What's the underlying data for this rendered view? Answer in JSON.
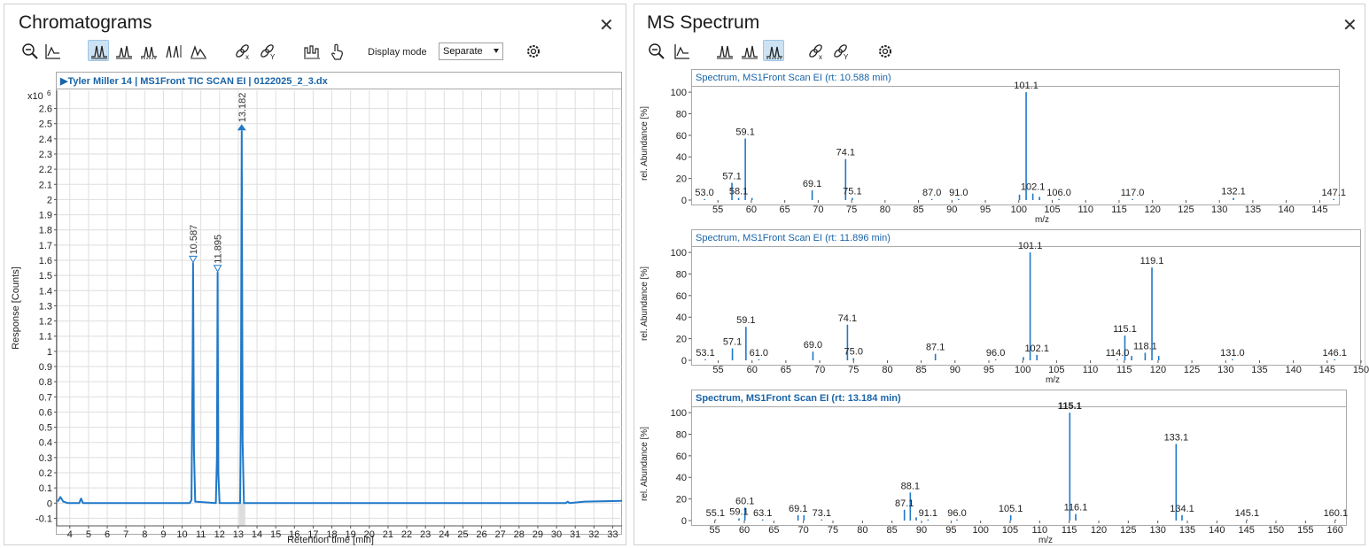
{
  "left": {
    "title": "Chromatograms",
    "display_mode_label": "Display mode",
    "display_mode_value": "Separate",
    "chart_header": "Tyler Miller 14 | MS1Front TIC SCAN EI | 0122025_2_3.dx"
  },
  "right": {
    "title": "MS Spectrum"
  },
  "chart_data": [
    {
      "type": "line",
      "ylabel": "Response [Counts]",
      "xlabel": "Retention time [min]",
      "y_multiplier": "x10 6",
      "xlim": [
        3.3,
        33.5
      ],
      "ylim": [
        -0.15,
        2.72
      ],
      "xticks": [
        4,
        5,
        6,
        7,
        8,
        9,
        10,
        11,
        12,
        13,
        14,
        15,
        16,
        17,
        18,
        19,
        20,
        21,
        22,
        23,
        24,
        25,
        26,
        27,
        28,
        29,
        30,
        31,
        32,
        33
      ],
      "yticks": [
        -0.1,
        0,
        0.1,
        0.2,
        0.3,
        0.4,
        0.5,
        0.6,
        0.7,
        0.8,
        0.9,
        1,
        1.1,
        1.2,
        1.3,
        1.4,
        1.5,
        1.6,
        1.7,
        1.8,
        1.9,
        2,
        2.1,
        2.2,
        2.3,
        2.4,
        2.5,
        2.6
      ],
      "ytick_labels": [
        "-0.1",
        "0",
        "0.1",
        "0.2",
        "0.3",
        "0.4",
        "0.5",
        "0.6",
        "0.7",
        "0.8",
        "0.9",
        "1",
        "1.1",
        "1.2",
        "1.3",
        "1.4",
        "1.5",
        "1.6",
        "1.7",
        "1.8",
        "1.9",
        "2",
        "2.1",
        "2.2",
        "2.3",
        "2.4",
        "2.5",
        "2.6"
      ],
      "grid": true,
      "peaks": [
        {
          "label": "10.587",
          "rt": 10.587,
          "height": 1.58
        },
        {
          "label": "11.895",
          "rt": 11.895,
          "height": 1.52
        },
        {
          "label": "13.182",
          "rt": 13.182,
          "height": 2.45
        }
      ],
      "series": [
        {
          "points": [
            [
              3.35,
              0.01
            ],
            [
              3.5,
              0.04
            ],
            [
              3.65,
              0.01
            ],
            [
              3.9,
              0.0
            ],
            [
              4.5,
              0.0
            ],
            [
              4.6,
              0.03
            ],
            [
              4.7,
              0.0
            ],
            [
              10.4,
              0.0
            ],
            [
              10.5,
              0.02
            ],
            [
              10.56,
              0.95
            ],
            [
              10.587,
              1.58
            ],
            [
              10.63,
              0.35
            ],
            [
              10.7,
              0.01
            ],
            [
              11.8,
              0.0
            ],
            [
              11.86,
              0.3
            ],
            [
              11.895,
              1.52
            ],
            [
              11.93,
              0.2
            ],
            [
              12.0,
              0.0
            ],
            [
              13.1,
              0.0
            ],
            [
              13.14,
              0.6
            ],
            [
              13.182,
              2.45
            ],
            [
              13.23,
              0.4
            ],
            [
              13.3,
              0.0
            ],
            [
              30.5,
              0.0
            ],
            [
              30.6,
              0.01
            ],
            [
              30.7,
              0.0
            ],
            [
              31.5,
              0.01
            ],
            [
              33.5,
              0.015
            ]
          ]
        }
      ]
    },
    {
      "type": "bar",
      "title": "Spectrum, MS1Front Scan EI (rt: 10.588 min)",
      "xlabel": "m/z",
      "ylabel": "rel. Abundance [%]",
      "xlim": [
        51,
        148
      ],
      "ylim": [
        0,
        105
      ],
      "xticks": [
        55,
        60,
        65,
        70,
        75,
        80,
        85,
        90,
        95,
        100,
        105,
        110,
        115,
        120,
        125,
        130,
        135,
        140,
        145
      ],
      "yticks": [
        0,
        20,
        40,
        60,
        80,
        100
      ],
      "grid": false,
      "bars": [
        [
          53,
          1
        ],
        [
          57.1,
          16
        ],
        [
          58.1,
          2
        ],
        [
          59.1,
          57
        ],
        [
          60.1,
          2
        ],
        [
          69.1,
          9
        ],
        [
          74.1,
          38
        ],
        [
          75.1,
          2
        ],
        [
          87,
          1
        ],
        [
          91,
          1
        ],
        [
          100.1,
          5
        ],
        [
          101.1,
          100
        ],
        [
          102.1,
          6
        ],
        [
          103.1,
          3
        ],
        [
          106,
          1
        ],
        [
          117,
          1
        ],
        [
          132.1,
          2
        ],
        [
          147.1,
          1
        ]
      ],
      "labels": [
        {
          "x": 53,
          "y": 1,
          "text": "53.0"
        },
        {
          "x": 57.1,
          "y": 16,
          "text": "57.1"
        },
        {
          "x": 58.1,
          "y": 2,
          "text": "58.1"
        },
        {
          "x": 59.1,
          "y": 57,
          "text": "59.1"
        },
        {
          "x": 69.1,
          "y": 9,
          "text": "69.1"
        },
        {
          "x": 74.1,
          "y": 38,
          "text": "74.1"
        },
        {
          "x": 75.1,
          "y": 2,
          "text": "75.1"
        },
        {
          "x": 87,
          "y": 1,
          "text": "87.0"
        },
        {
          "x": 91,
          "y": 1,
          "text": "91.0"
        },
        {
          "x": 101.1,
          "y": 100,
          "text": "101.1"
        },
        {
          "x": 102.1,
          "y": 6,
          "text": "102.1"
        },
        {
          "x": 106,
          "y": 1,
          "text": "106.0"
        },
        {
          "x": 117,
          "y": 1,
          "text": "117.0"
        },
        {
          "x": 132.1,
          "y": 2,
          "text": "132.1"
        },
        {
          "x": 147.1,
          "y": 1,
          "text": "147.1"
        }
      ]
    },
    {
      "type": "bar",
      "title": "Spectrum, MS1Front Scan EI (rt: 11.896 min)",
      "xlabel": "m/z",
      "ylabel": "rel. Abundance [%]",
      "xlim": [
        51,
        150
      ],
      "ylim": [
        0,
        105
      ],
      "xticks": [
        55,
        60,
        65,
        70,
        75,
        80,
        85,
        90,
        95,
        100,
        105,
        110,
        115,
        120,
        125,
        130,
        135,
        140,
        145,
        150
      ],
      "yticks": [
        0,
        20,
        40,
        60,
        80,
        100
      ],
      "grid": false,
      "bars": [
        [
          53.1,
          1
        ],
        [
          57.1,
          11
        ],
        [
          59.1,
          31
        ],
        [
          61,
          1
        ],
        [
          69,
          8
        ],
        [
          74.1,
          33
        ],
        [
          75,
          2
        ],
        [
          87.1,
          6
        ],
        [
          96,
          1
        ],
        [
          100.1,
          3
        ],
        [
          101.1,
          100
        ],
        [
          102.1,
          5
        ],
        [
          114,
          1
        ],
        [
          115.1,
          23
        ],
        [
          116.1,
          4
        ],
        [
          118.1,
          7
        ],
        [
          119.1,
          86
        ],
        [
          120.1,
          4
        ],
        [
          131,
          1
        ],
        [
          146.1,
          1
        ]
      ],
      "labels": [
        {
          "x": 53.1,
          "y": 1,
          "text": "53.1"
        },
        {
          "x": 57.1,
          "y": 11,
          "text": "57.1"
        },
        {
          "x": 59.1,
          "y": 31,
          "text": "59.1"
        },
        {
          "x": 61,
          "y": 1,
          "text": "61.0"
        },
        {
          "x": 69,
          "y": 8,
          "text": "69.0"
        },
        {
          "x": 74.1,
          "y": 33,
          "text": "74.1"
        },
        {
          "x": 75,
          "y": 2,
          "text": "75.0"
        },
        {
          "x": 87.1,
          "y": 6,
          "text": "87.1"
        },
        {
          "x": 96,
          "y": 1,
          "text": "96.0"
        },
        {
          "x": 101.1,
          "y": 100,
          "text": "101.1"
        },
        {
          "x": 102.1,
          "y": 5,
          "text": "102.1"
        },
        {
          "x": 114,
          "y": 1,
          "text": "114.0"
        },
        {
          "x": 115.1,
          "y": 23,
          "text": "115.1"
        },
        {
          "x": 118.1,
          "y": 7,
          "text": "118.1"
        },
        {
          "x": 119.1,
          "y": 86,
          "text": "119.1"
        },
        {
          "x": 131,
          "y": 1,
          "text": "131.0"
        },
        {
          "x": 146.1,
          "y": 1,
          "text": "146.1"
        }
      ]
    },
    {
      "type": "bar",
      "title": "Spectrum, MS1Front Scan EI (rt: 13.184 min)",
      "xlabel": "m/z",
      "ylabel": "rel. Abundance [%]",
      "xlim": [
        51,
        162
      ],
      "ylim": [
        0,
        105
      ],
      "xticks": [
        55,
        60,
        65,
        70,
        75,
        80,
        85,
        90,
        95,
        100,
        105,
        110,
        115,
        120,
        125,
        130,
        135,
        140,
        145,
        150,
        155,
        160
      ],
      "yticks": [
        0,
        20,
        40,
        60,
        80,
        100
      ],
      "grid": false,
      "bars": [
        [
          55.1,
          1
        ],
        [
          59.1,
          2
        ],
        [
          60.1,
          12
        ],
        [
          63.1,
          1
        ],
        [
          69.1,
          5
        ],
        [
          70.1,
          5
        ],
        [
          73.1,
          1
        ],
        [
          87.1,
          10
        ],
        [
          88.1,
          26
        ],
        [
          89.1,
          3
        ],
        [
          91.1,
          1
        ],
        [
          96,
          1
        ],
        [
          105.1,
          5
        ],
        [
          115.1,
          100
        ],
        [
          116.1,
          6
        ],
        [
          133.1,
          71
        ],
        [
          134.1,
          5
        ],
        [
          145.1,
          1
        ],
        [
          160.1,
          1
        ]
      ],
      "labels": [
        {
          "x": 55.1,
          "y": 1,
          "text": "55.1"
        },
        {
          "x": 59.1,
          "y": 2,
          "text": "59.1"
        },
        {
          "x": 60.1,
          "y": 12,
          "text": "60.1"
        },
        {
          "x": 63.1,
          "y": 1,
          "text": "63.1"
        },
        {
          "x": 69.1,
          "y": 5,
          "text": "69.1"
        },
        {
          "x": 73.1,
          "y": 1,
          "text": "73.1"
        },
        {
          "x": 87.1,
          "y": 10,
          "text": "87.1"
        },
        {
          "x": 88.1,
          "y": 26,
          "text": "88.1"
        },
        {
          "x": 91.1,
          "y": 1,
          "text": "91.1"
        },
        {
          "x": 96,
          "y": 1,
          "text": "96.0"
        },
        {
          "x": 105.1,
          "y": 5,
          "text": "105.1"
        },
        {
          "x": 115.1,
          "y": 100,
          "text": "115.1",
          "bold": true
        },
        {
          "x": 116.1,
          "y": 6,
          "text": "116.1"
        },
        {
          "x": 133.1,
          "y": 71,
          "text": "133.1"
        },
        {
          "x": 134.1,
          "y": 5,
          "text": "134.1"
        },
        {
          "x": 145.1,
          "y": 1,
          "text": "145.1"
        },
        {
          "x": 160.1,
          "y": 1,
          "text": "160.1"
        }
      ]
    }
  ],
  "colors": {
    "trace": "#1f78c8",
    "header_text": "#1864a8",
    "grid": "#dedede",
    "toolbar_active": "#cde3f3"
  },
  "icons": {
    "left_toolbar": [
      "zoom-out-icon",
      "autoscale-icon",
      "overlay-peaks-icon",
      "stack-peaks-icon",
      "integrate-peaks-icon",
      "manual-integration-icon",
      "baseline-icon",
      "unlink-icon",
      "link-y-icon",
      "spectrum-icon",
      "touch-icon",
      "settings-icon"
    ],
    "right_toolbar": [
      "zoom-out-icon",
      "autoscale-icon",
      "overlay-peaks-icon",
      "stack-peaks-icon",
      "stack-peaks-active-icon",
      "unlink-icon",
      "link-y-icon",
      "settings-icon"
    ]
  }
}
